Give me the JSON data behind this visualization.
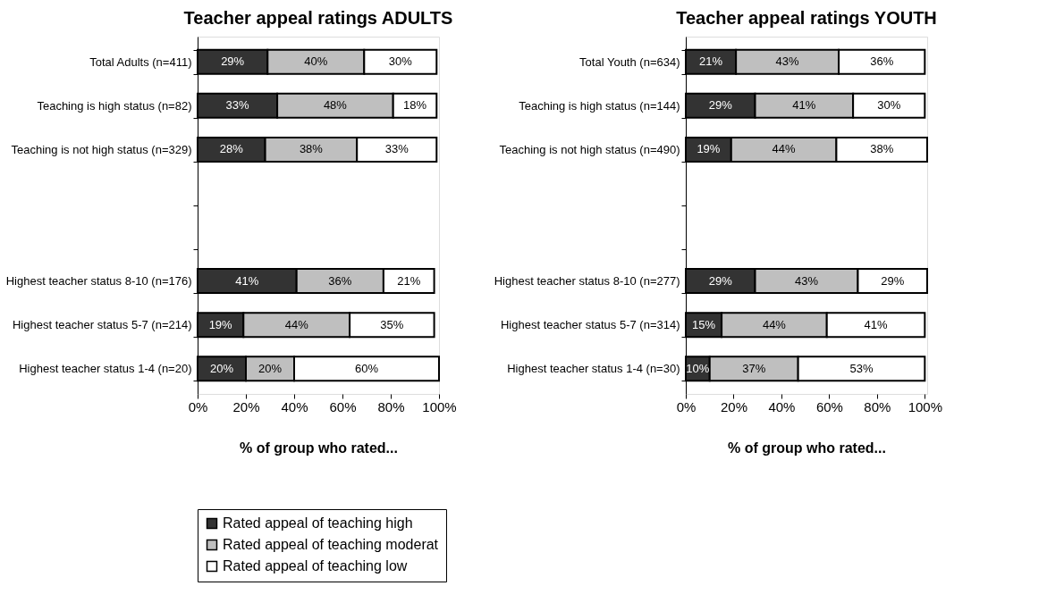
{
  "chart_data": [
    {
      "type": "bar",
      "orientation": "horizontal",
      "stacked": true,
      "title": "Teacher appeal ratings ADULTS",
      "xlabel": "% of group who rated...",
      "categories": [
        "Total Adults (n=411)",
        "Teaching is high status (n=82)",
        "Teaching is not high status (n=329)",
        null,
        null,
        "Highest teacher status 8-10 (n=176)",
        "Highest teacher status 5-7 (n=214)",
        "Highest teacher status 1-4 (n=20)"
      ],
      "series": [
        {
          "name": "Rated appeal of teaching high",
          "color": "#333333",
          "values": [
            29,
            33,
            28,
            null,
            null,
            41,
            19,
            20
          ],
          "value_labels": [
            "29%",
            "33%",
            "28%",
            null,
            null,
            "41%",
            "19%",
            "20%"
          ]
        },
        {
          "name": "Rated appeal of teaching moderat",
          "color": "#bfbfbf",
          "values": [
            40,
            48,
            38,
            null,
            null,
            36,
            44,
            20
          ],
          "value_labels": [
            "40%",
            "48%",
            "38%",
            null,
            null,
            "36%",
            "44%",
            "20%"
          ]
        },
        {
          "name": "Rated appeal of teaching low",
          "color": "#ffffff",
          "values": [
            30,
            18,
            33,
            null,
            null,
            21,
            35,
            60
          ],
          "value_labels": [
            "30%",
            "18%",
            "33%",
            null,
            null,
            "21%",
            "35%",
            "60%"
          ]
        }
      ],
      "xlim": [
        0,
        100
      ],
      "xticks": [
        {
          "value": 0,
          "label": "0%"
        },
        {
          "value": 20,
          "label": "20%"
        },
        {
          "value": 40,
          "label": "40%"
        },
        {
          "value": 60,
          "label": "60%"
        },
        {
          "value": 80,
          "label": "80%"
        },
        {
          "value": 100,
          "label": "100%"
        }
      ],
      "grid": false,
      "legend": "bottom"
    },
    {
      "type": "bar",
      "orientation": "horizontal",
      "stacked": true,
      "title": "Teacher appeal ratings YOUTH",
      "xlabel": "% of group who rated...",
      "categories": [
        "Total Youth (n=634)",
        "Teaching is high status (n=144)",
        "Teaching is not high status (n=490)",
        null,
        null,
        "Highest teacher status 8-10 (n=277)",
        "Highest teacher status 5-7 (n=314)",
        "Highest teacher status 1-4 (n=30)"
      ],
      "series": [
        {
          "name": "Rated appeal of teaching high",
          "color": "#333333",
          "values": [
            21,
            29,
            19,
            null,
            null,
            29,
            15,
            10
          ],
          "value_labels": [
            "21%",
            "29%",
            "19%",
            null,
            null,
            "29%",
            "15%",
            "10%"
          ]
        },
        {
          "name": "Rated appeal of teaching moderat",
          "color": "#bfbfbf",
          "values": [
            43,
            41,
            44,
            null,
            null,
            43,
            44,
            37
          ],
          "value_labels": [
            "43%",
            "41%",
            "44%",
            null,
            null,
            "43%",
            "44%",
            "37%"
          ]
        },
        {
          "name": "Rated appeal of teaching low",
          "color": "#ffffff",
          "values": [
            36,
            30,
            38,
            null,
            null,
            29,
            41,
            53
          ],
          "value_labels": [
            "36%",
            "30%",
            "38%",
            null,
            null,
            "29%",
            "41%",
            "53%"
          ]
        }
      ],
      "xlim": [
        0,
        101
      ],
      "xticks": [
        {
          "value": 0,
          "label": "0%"
        },
        {
          "value": 20,
          "label": "20%"
        },
        {
          "value": 40,
          "label": "40%"
        },
        {
          "value": 60,
          "label": "60%"
        },
        {
          "value": 80,
          "label": "80%"
        },
        {
          "value": 100,
          "label": "100%"
        }
      ],
      "grid": false,
      "legend": false
    }
  ]
}
